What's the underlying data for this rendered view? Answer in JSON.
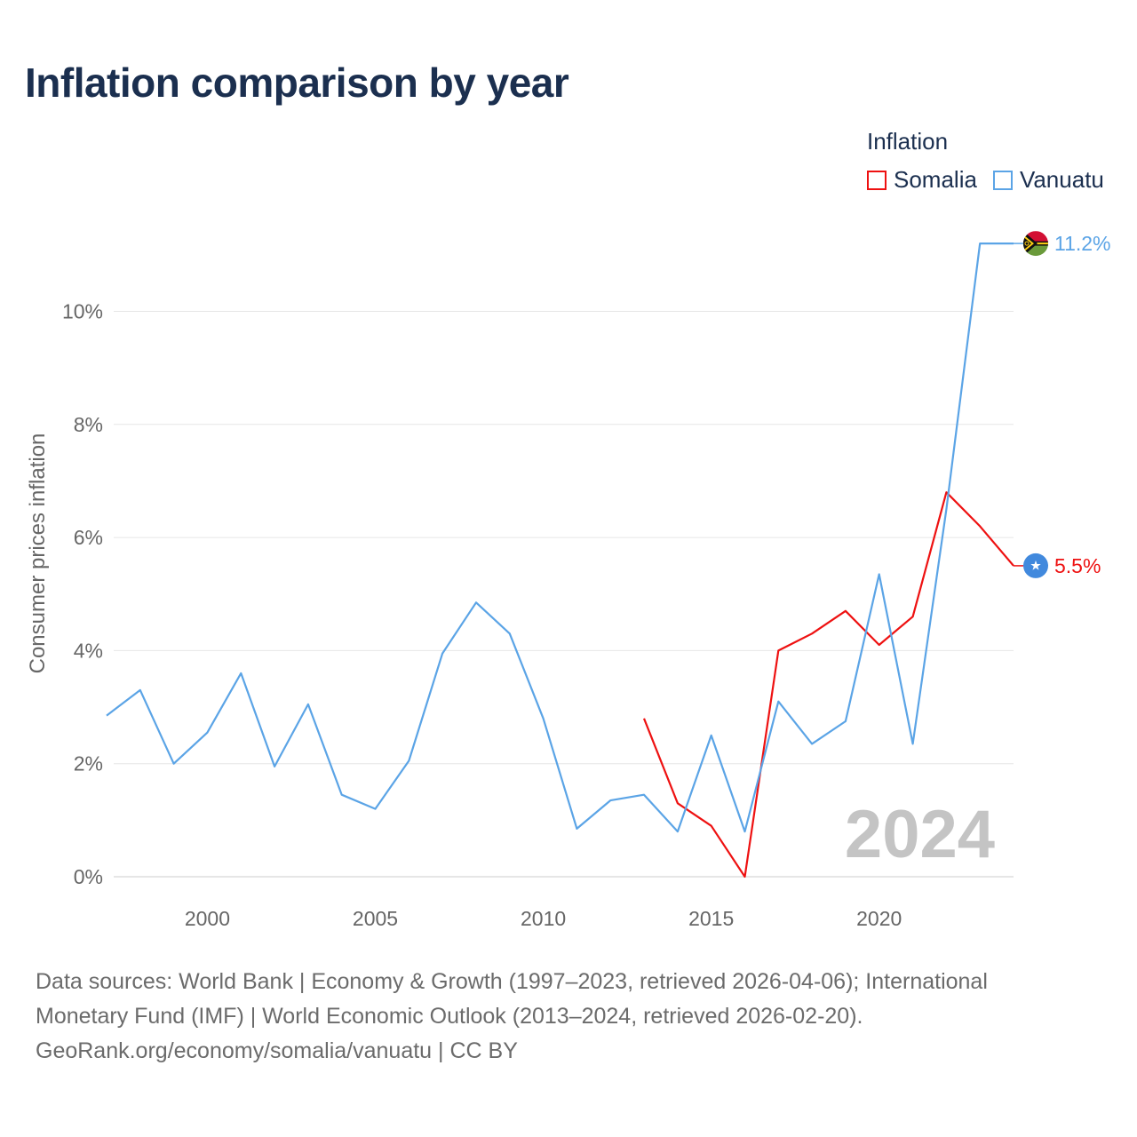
{
  "title": "Inflation comparison by year",
  "legend": {
    "title": "Inflation",
    "items": [
      {
        "name": "Somalia",
        "color": "#ee1111"
      },
      {
        "name": "Vanuatu",
        "color": "#5ba4e6"
      }
    ]
  },
  "chart_data": {
    "type": "line",
    "title": "Inflation comparison by year",
    "xlabel": "",
    "ylabel": "Consumer prices inflation",
    "xlim": [
      1997,
      2024
    ],
    "ylim": [
      0,
      11.5
    ],
    "y_ticks": [
      0,
      2,
      4,
      6,
      8,
      10
    ],
    "y_tick_labels": [
      "0%",
      "2%",
      "4%",
      "6%",
      "8%",
      "10%"
    ],
    "x_ticks": [
      2000,
      2005,
      2010,
      2015,
      2020
    ],
    "x_tick_labels": [
      "2000",
      "2005",
      "2010",
      "2015",
      "2020"
    ],
    "grid": true,
    "year_watermark": "2024",
    "series": [
      {
        "name": "Somalia",
        "color": "#ee1111",
        "x": [
          2013,
          2014,
          2015,
          2016,
          2017,
          2018,
          2019,
          2020,
          2021,
          2022,
          2023,
          2024
        ],
        "values": [
          2.8,
          1.3,
          0.9,
          0.0,
          4.0,
          4.3,
          4.7,
          4.1,
          4.6,
          6.8,
          6.2,
          5.5
        ],
        "end_label": "5.5%"
      },
      {
        "name": "Vanuatu",
        "color": "#5ba4e6",
        "x": [
          1997,
          1998,
          1999,
          2000,
          2001,
          2002,
          2003,
          2004,
          2005,
          2006,
          2007,
          2008,
          2009,
          2010,
          2011,
          2012,
          2013,
          2014,
          2015,
          2016,
          2017,
          2018,
          2019,
          2020,
          2021,
          2022,
          2023,
          2024
        ],
        "values": [
          2.85,
          3.3,
          2.0,
          2.55,
          3.6,
          1.95,
          3.05,
          1.45,
          1.2,
          2.05,
          3.95,
          4.85,
          4.3,
          2.8,
          0.85,
          1.35,
          1.45,
          0.8,
          2.5,
          0.8,
          3.1,
          2.35,
          2.75,
          5.35,
          2.35,
          6.5,
          11.2,
          11.2
        ],
        "end_label": "11.2%"
      }
    ]
  },
  "sources": {
    "line1": "Data sources: World Bank | Economy & Growth (1997–2023, retrieved 2026-04-06); International",
    "line2": "Monetary Fund (IMF) | World Economic Outlook (2013–2024, retrieved 2026-02-20).",
    "line3": "GeoRank.org/economy/somalia/vanuatu | CC BY"
  }
}
